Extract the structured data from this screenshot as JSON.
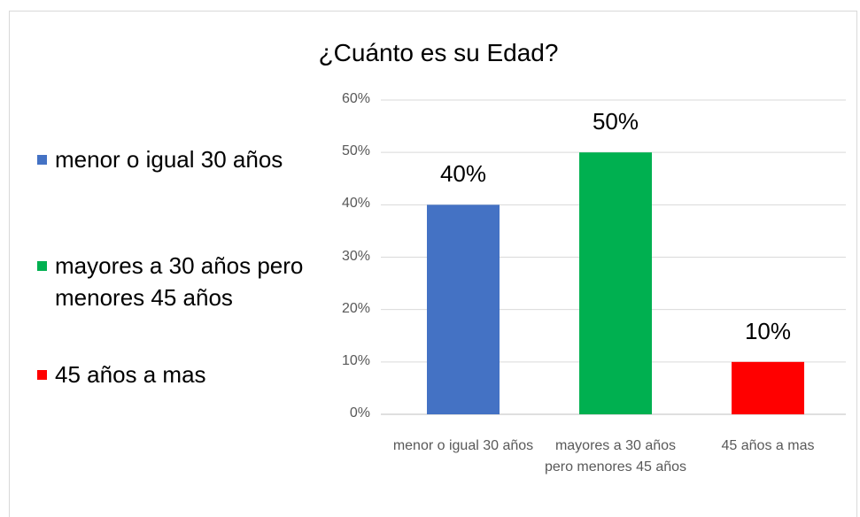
{
  "chart_data": {
    "type": "bar",
    "title": "¿Cuánto es su Edad?",
    "categories": [
      "menor o igual 30 años",
      "mayores a 30 años pero menores 45 años",
      "45 años a mas"
    ],
    "values": [
      40,
      50,
      10
    ],
    "value_labels": [
      "40%",
      "50%",
      "10%"
    ],
    "colors": [
      "#4472c4",
      "#00b050",
      "#ff0000"
    ],
    "ylim": [
      0,
      60
    ],
    "yticks": [
      {
        "value": 0,
        "label": "0%"
      },
      {
        "value": 10,
        "label": "10%"
      },
      {
        "value": 20,
        "label": "20%"
      },
      {
        "value": 30,
        "label": "30%"
      },
      {
        "value": 40,
        "label": "40%"
      },
      {
        "value": 50,
        "label": "50%"
      },
      {
        "value": 60,
        "label": "60%"
      }
    ],
    "grid": true,
    "legend": "left"
  }
}
